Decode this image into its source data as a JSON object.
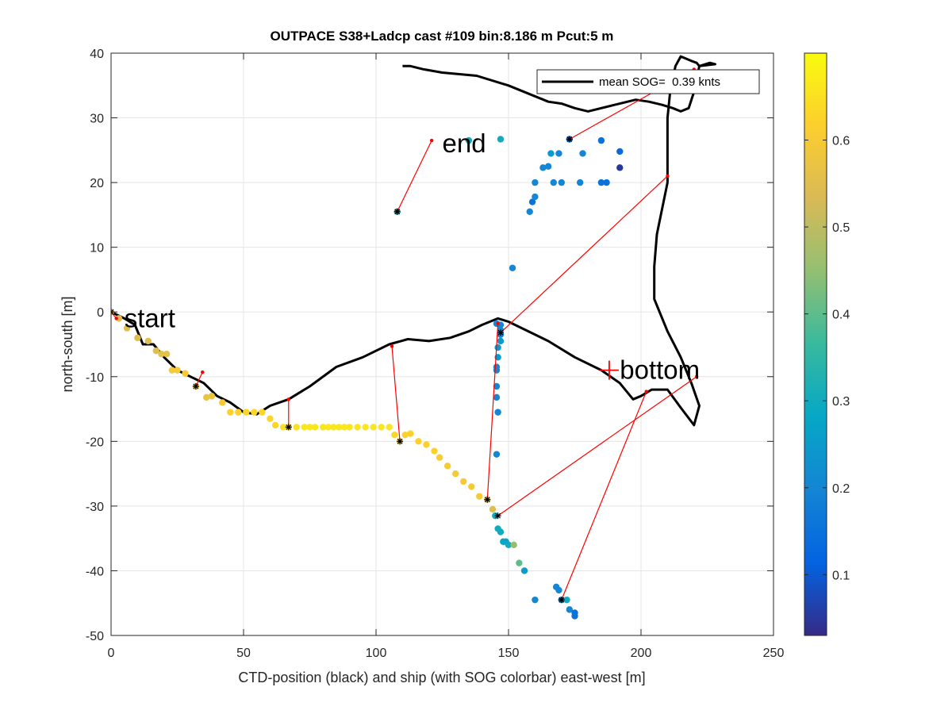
{
  "chart_data": {
    "type": "scatter",
    "title": "OUTPACE S38+Ladcp cast #109 bin:8.186 m  Pcut:5 m",
    "xlabel": "CTD-position (black) and ship (with SOG colorbar) east-west [m]",
    "ylabel": "north-south [m]",
    "xlim": [
      0,
      250
    ],
    "ylim": [
      -50,
      40
    ],
    "xticks": [
      0,
      50,
      100,
      150,
      200,
      250
    ],
    "yticks": [
      -50,
      -40,
      -30,
      -20,
      -10,
      0,
      10,
      20,
      30,
      40
    ],
    "grid": true,
    "legend": {
      "location": "top-right",
      "entries": [
        "mean SOG=  0.39 knts"
      ]
    },
    "colorbar": {
      "range": [
        0.03,
        0.7
      ],
      "ticks": [
        0.1,
        0.2,
        0.3,
        0.4,
        0.5,
        0.6
      ],
      "colormap": [
        "#352a87",
        "#0363e1",
        "#1485d4",
        "#06a7c6",
        "#38b99e",
        "#92bf73",
        "#d9ba56",
        "#fcce2e",
        "#f9fb0e"
      ]
    },
    "annotations": [
      {
        "text": "start",
        "x": 5,
        "y": -1
      },
      {
        "text": "end",
        "x": 125,
        "y": 26
      },
      {
        "text": "bottom",
        "x": 192,
        "y": -9
      }
    ],
    "bottom_marker": {
      "x": 188,
      "y": -9,
      "color": "#ff0000"
    },
    "ctd_track": {
      "color": "#000000",
      "x": [
        0,
        5,
        9,
        12,
        16,
        20,
        25,
        30,
        35,
        40,
        45,
        50,
        55,
        60,
        67,
        75,
        85,
        95,
        105,
        112,
        120,
        128,
        135,
        140,
        146,
        150,
        155,
        165,
        175,
        185,
        192,
        197,
        200,
        204,
        210,
        215,
        220,
        222,
        219,
        215,
        210,
        205,
        205,
        206,
        208,
        210,
        210,
        210,
        211,
        213,
        215,
        219,
        221,
        222,
        226,
        228,
        222,
        220,
        218,
        215,
        212,
        208,
        203,
        198,
        190,
        180,
        175,
        170,
        165,
        150,
        138,
        125,
        118,
        113,
        110
      ],
      "y": [
        0,
        -1,
        -2,
        -5,
        -5,
        -7,
        -9,
        -10,
        -11,
        -13,
        -14,
        -15.5,
        -15.8,
        -14.5,
        -13.5,
        -11.5,
        -8.5,
        -7,
        -5,
        -4.2,
        -4.5,
        -4,
        -3,
        -2,
        -1,
        -1.5,
        -2.5,
        -4.5,
        -7,
        -9,
        -11,
        -13.5,
        -13,
        -12,
        -12,
        -14.8,
        -17.5,
        -14.5,
        -11,
        -7,
        -3,
        2,
        7,
        12,
        16,
        20,
        25,
        30,
        34,
        38,
        39.5,
        38.8,
        38.5,
        38,
        38.5,
        38.3,
        38,
        34,
        31.5,
        31,
        31.5,
        32,
        32.5,
        32.8,
        32,
        31,
        31.5,
        32.2,
        32.5,
        35,
        36.5,
        37,
        37.5,
        38,
        38
      ]
    },
    "ship_points": {
      "x": [
        0,
        3,
        6,
        10,
        14,
        17,
        19,
        21,
        23,
        25,
        28,
        32,
        36,
        38,
        42,
        45,
        48,
        51,
        54,
        57,
        60,
        62,
        65,
        67,
        70,
        73,
        75,
        77,
        80,
        82,
        84,
        86,
        88,
        90,
        93,
        96,
        99,
        102,
        105,
        107,
        109,
        111,
        113,
        116,
        119,
        122,
        124,
        127,
        130,
        133,
        136,
        139,
        142,
        144,
        145,
        146,
        147,
        148,
        149,
        150,
        152,
        154,
        156,
        160,
        168,
        169,
        170,
        172,
        173,
        175,
        175,
        145.5,
        146,
        145.5,
        145.5,
        145.5,
        145.5,
        146,
        146,
        147,
        147,
        147,
        147,
        145.5,
        151.5,
        158,
        159,
        160,
        160,
        163,
        165,
        166,
        169,
        167,
        170,
        177,
        178,
        185,
        185,
        187,
        192,
        192,
        173,
        147,
        135,
        108
      ],
      "y": [
        0,
        -1,
        -2.5,
        -4,
        -4.5,
        -6,
        -6.5,
        -6.5,
        -9,
        -9,
        -9.5,
        -11.5,
        -13.2,
        -13,
        -14,
        -15.5,
        -15.5,
        -15.5,
        -15.5,
        -15.5,
        -16.5,
        -17.5,
        -17.8,
        -17.8,
        -17.8,
        -17.8,
        -17.8,
        -17.8,
        -17.8,
        -17.8,
        -17.8,
        -17.8,
        -17.8,
        -17.8,
        -17.8,
        -17.8,
        -17.8,
        -17.8,
        -17.8,
        -19,
        -20,
        -19,
        -18.8,
        -20,
        -20.5,
        -21.5,
        -22.5,
        -23.8,
        -25,
        -26.2,
        -27,
        -28.5,
        -29,
        -30.5,
        -31.5,
        -33.5,
        -34,
        -35.5,
        -35.5,
        -36,
        -36,
        -38.8,
        -40,
        -44.5,
        -42.5,
        -43,
        -44.5,
        -44.5,
        -46,
        -46.5,
        -47,
        -22,
        -15.5,
        -13.2,
        -11.5,
        -9,
        -8.5,
        -7,
        -5.5,
        -4.5,
        -3.5,
        -2.8,
        -2,
        -1.8,
        6.8,
        15.5,
        17,
        17.8,
        20,
        22.3,
        22.5,
        24.5,
        24.5,
        20,
        20,
        20,
        24.5,
        26.5,
        20,
        20,
        24.8,
        22.3,
        26.7,
        26.7,
        26.5,
        15.5
      ],
      "sog": [
        0.55,
        0.55,
        0.55,
        0.55,
        0.55,
        0.55,
        0.56,
        0.56,
        0.6,
        0.6,
        0.6,
        0.6,
        0.57,
        0.57,
        0.6,
        0.62,
        0.62,
        0.63,
        0.63,
        0.63,
        0.63,
        0.63,
        0.65,
        0.65,
        0.65,
        0.66,
        0.66,
        0.66,
        0.66,
        0.66,
        0.66,
        0.66,
        0.66,
        0.66,
        0.66,
        0.66,
        0.66,
        0.66,
        0.66,
        0.63,
        0.63,
        0.62,
        0.62,
        0.62,
        0.62,
        0.62,
        0.61,
        0.6,
        0.6,
        0.6,
        0.6,
        0.6,
        0.58,
        0.55,
        0.3,
        0.3,
        0.3,
        0.28,
        0.28,
        0.3,
        0.45,
        0.4,
        0.25,
        0.2,
        0.2,
        0.2,
        0.2,
        0.3,
        0.2,
        0.15,
        0.15,
        0.2,
        0.2,
        0.2,
        0.2,
        0.2,
        0.2,
        0.25,
        0.25,
        0.25,
        0.2,
        0.2,
        0.2,
        0.2,
        0.2,
        0.2,
        0.15,
        0.2,
        0.2,
        0.2,
        0.2,
        0.25,
        0.2,
        0.2,
        0.2,
        0.2,
        0.2,
        0.15,
        0.15,
        0.15,
        0.13,
        0.05,
        0.15,
        0.3,
        0.3,
        0.3
      ]
    },
    "connections": [
      {
        "ship": [
          0,
          0
        ],
        "ctd": [
          2,
          -1
        ]
      },
      {
        "ship": [
          32,
          -11.5
        ],
        "ctd": [
          34.5,
          -9.3
        ]
      },
      {
        "ship": [
          67,
          -17.8
        ],
        "ctd": [
          67,
          -13.5
        ]
      },
      {
        "ship": [
          109,
          -20
        ],
        "ctd": [
          106,
          -5.3
        ]
      },
      {
        "ship": [
          142,
          -29
        ],
        "ctd": [
          146,
          -1.8
        ]
      },
      {
        "ship": [
          147,
          -3.2
        ],
        "ctd": [
          210,
          21
        ]
      },
      {
        "ship": [
          146,
          -31.5
        ],
        "ctd": [
          221,
          -10
        ]
      },
      {
        "ship": [
          170,
          -44.5
        ],
        "ctd": [
          202,
          -12.3
        ]
      },
      {
        "ship": [
          108,
          15.5
        ],
        "ctd": [
          121,
          26.5
        ]
      },
      {
        "ship": [
          173,
          26.7
        ],
        "ctd": [
          220,
          37.5
        ]
      }
    ]
  }
}
